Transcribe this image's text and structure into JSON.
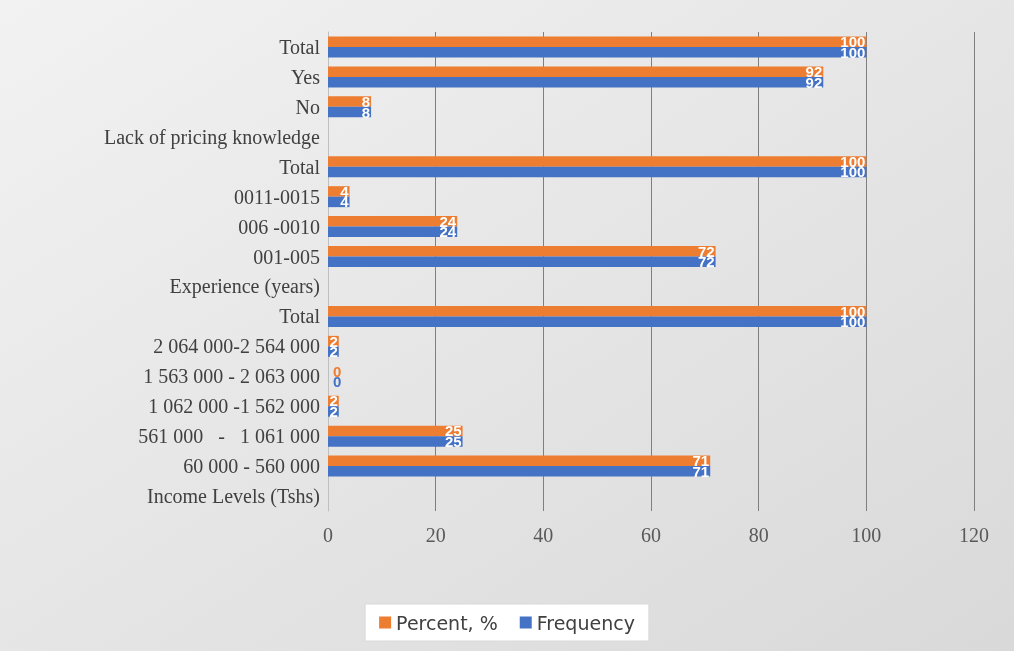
{
  "chart_data": {
    "type": "bar",
    "orientation": "horizontal",
    "categories": [
      "Total",
      "Yes",
      "No",
      "Lack of pricing knowledge",
      "Total",
      "0011-0015",
      "006 -0010",
      "001-005",
      "Experience (years)",
      "Total",
      "2 064 000-2 564 000",
      "1 563 000 - 2 063 000",
      "1 062 000 -1 562 000",
      "561 000   -   1 061 000",
      "60 000 - 560 000",
      "Income Levels (Tshs)"
    ],
    "series": [
      {
        "name": "Percent, %",
        "color": "#ed7d31",
        "values": [
          100,
          92,
          8,
          null,
          100,
          4,
          24,
          72,
          null,
          100,
          2,
          0,
          2,
          25,
          71,
          null
        ]
      },
      {
        "name": "Frequency",
        "color": "#4472c4",
        "values": [
          100,
          92,
          8,
          null,
          100,
          4,
          24,
          72,
          null,
          100,
          2,
          0,
          2,
          25,
          71,
          null
        ]
      }
    ],
    "xlim": [
      0,
      120
    ],
    "xticks": [
      0,
      20,
      40,
      60,
      80,
      100,
      120
    ],
    "grid": "x",
    "legend": "bottom",
    "data_labels": true
  }
}
